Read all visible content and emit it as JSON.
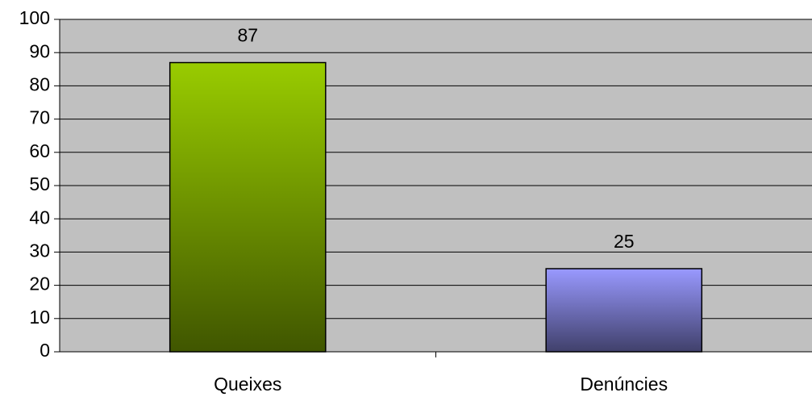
{
  "chart_data": {
    "type": "bar",
    "categories": [
      "Queixes",
      "Denúncies"
    ],
    "values": [
      87,
      25
    ],
    "colors": [
      "#99cc00",
      "#9999ff"
    ],
    "ylim": [
      0,
      100
    ],
    "yticks": [
      0,
      10,
      20,
      30,
      40,
      50,
      60,
      70,
      80,
      90,
      100
    ],
    "grid": true
  }
}
